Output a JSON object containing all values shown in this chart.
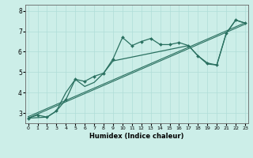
{
  "xlabel": "Humidex (Indice chaleur)",
  "bg_color": "#cceee8",
  "grid_color": "#b0ddd8",
  "line_color": "#2a7060",
  "xlim": [
    -0.3,
    23.3
  ],
  "ylim": [
    2.5,
    8.3
  ],
  "yticks": [
    3,
    4,
    5,
    6,
    7,
    8
  ],
  "xticks": [
    0,
    1,
    2,
    3,
    4,
    5,
    6,
    7,
    8,
    9,
    10,
    11,
    12,
    13,
    14,
    15,
    16,
    17,
    18,
    19,
    20,
    21,
    22,
    23
  ],
  "line1_x": [
    0,
    1,
    2,
    3,
    4,
    5,
    6,
    7,
    8,
    9,
    10,
    11,
    12,
    13,
    14,
    15,
    16,
    17,
    18,
    19,
    20,
    21,
    22,
    23
  ],
  "line1_y": [
    2.75,
    2.9,
    2.8,
    3.1,
    3.65,
    4.65,
    4.55,
    4.8,
    4.95,
    5.65,
    6.7,
    6.3,
    6.5,
    6.65,
    6.35,
    6.35,
    6.45,
    6.3,
    5.8,
    5.45,
    5.35,
    6.9,
    7.55,
    7.4
  ],
  "line2_x": [
    0,
    2,
    3,
    4,
    5,
    6,
    7,
    8,
    9,
    17,
    18,
    19,
    20,
    21,
    22,
    23
  ],
  "line2_y": [
    2.75,
    2.8,
    3.1,
    4.0,
    4.65,
    4.3,
    4.5,
    4.95,
    5.55,
    6.3,
    5.8,
    5.4,
    5.35,
    6.9,
    7.55,
    7.4
  ],
  "line3_x": [
    0,
    23
  ],
  "line3_y": [
    2.75,
    7.35
  ],
  "line4_x": [
    0,
    23
  ],
  "line4_y": [
    2.82,
    7.42
  ]
}
